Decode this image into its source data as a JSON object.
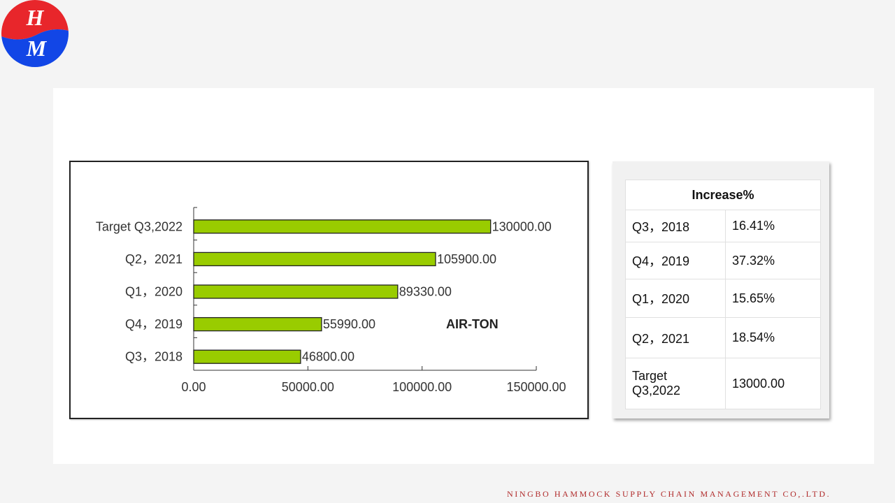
{
  "logo": {
    "letters": [
      "H",
      "M"
    ],
    "colors": {
      "top": "#e8262b",
      "bottom": "#1246e6"
    }
  },
  "chart_data": {
    "type": "bar",
    "orientation": "horizontal",
    "categories": [
      "Q3，2018",
      "Q4，2019",
      "Q1，2020",
      "Q2，2021",
      "Target Q3,2022"
    ],
    "values": [
      46800,
      55990,
      89330,
      105900,
      130000
    ],
    "value_labels": [
      "46800.00",
      "55990.00",
      "89330.00",
      "105900.00",
      "130000.00"
    ],
    "title": "",
    "annotation": "AIR-TON",
    "xlim": [
      0,
      150000
    ],
    "x_ticks": [
      0,
      50000,
      100000,
      150000
    ],
    "x_tick_labels": [
      "0.00",
      "50000.00",
      "100000.00",
      "150000.00"
    ],
    "bar_color": "#99cc00",
    "grid": false,
    "legend": "none"
  },
  "increase_table": {
    "header": "Increase%",
    "rows": [
      {
        "period": "Q3，2018",
        "value": "16.41%"
      },
      {
        "period": "Q4，2019",
        "value": "37.32%"
      },
      {
        "period": "Q1，2020",
        "value": "15.65%"
      },
      {
        "period": "Q2，2021",
        "value": "18.54%"
      },
      {
        "period": "Target Q3,2022",
        "value": "13000.00"
      }
    ]
  },
  "footer": {
    "company": "NINGBO HAMMOCK SUPPLY CHAIN MANAGEMENT CO,.LTD."
  }
}
